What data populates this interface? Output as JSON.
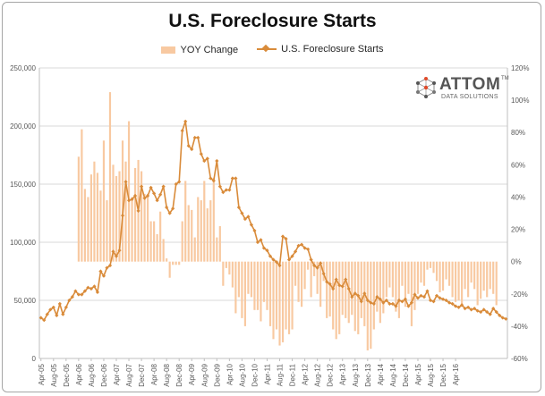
{
  "chart_data": {
    "type": "bar+line",
    "title": "U.S. Foreclosure Starts",
    "legend_position": "top",
    "legend": [
      "YOY Change",
      "U.S. Foreclosure Starts"
    ],
    "x_tick_labels": [
      "Apr-05",
      "Aug-05",
      "Dec-05",
      "Apr-06",
      "Aug-06",
      "Dec-06",
      "Apr-07",
      "Aug-07",
      "Dec-07",
      "Apr-08",
      "Aug-08",
      "Dec-08",
      "Apr-09",
      "Aug-09",
      "Dec-09",
      "Apr-10",
      "Aug-10",
      "Dec-10",
      "Apr-11",
      "Aug-11",
      "Dec-11",
      "Apr-12",
      "Aug-12",
      "Dec-12",
      "Apr-13",
      "Aug-13",
      "Dec-13",
      "Apr-14",
      "Aug-14",
      "Dec-14",
      "Apr-15",
      "Aug-15",
      "Dec-15",
      "Apr-16"
    ],
    "y_left": {
      "ylim": [
        0,
        250000
      ],
      "ticks": [
        "0",
        "50,000",
        "100,000",
        "150,000",
        "200,000",
        "250,000"
      ]
    },
    "y_right": {
      "ylim": [
        -60,
        120
      ],
      "ticks": [
        "-60%",
        "-40%",
        "-20%",
        "0%",
        "20%",
        "40%",
        "60%",
        "80%",
        "100%",
        "120%"
      ]
    },
    "grid": true,
    "start_month": "Apr-05",
    "series": [
      {
        "name": "U.S. Foreclosure Starts",
        "axis": "left",
        "color": "#d98b3a",
        "values": [
          35000,
          33000,
          38000,
          42000,
          44000,
          37000,
          47000,
          38000,
          44000,
          50000,
          53000,
          58000,
          55000,
          55000,
          58000,
          61000,
          60000,
          62000,
          57000,
          75000,
          71000,
          78000,
          80000,
          92000,
          88000,
          93000,
          123000,
          152000,
          136000,
          137000,
          140000,
          127000,
          148000,
          138000,
          140000,
          147000,
          142000,
          136000,
          141000,
          148000,
          130000,
          125000,
          129000,
          150000,
          152000,
          196000,
          204000,
          183000,
          180000,
          190000,
          190000,
          176000,
          170000,
          172000,
          155000,
          153000,
          170000,
          148000,
          143000,
          145000,
          145000,
          155000,
          155000,
          130000,
          125000,
          120000,
          122000,
          115000,
          110000,
          100000,
          102000,
          95000,
          93000,
          88000,
          85000,
          83000,
          80000,
          105000,
          103000,
          85000,
          88000,
          92000,
          97000,
          98000,
          95000,
          94000,
          85000,
          80000,
          78000,
          82000,
          73000,
          66000,
          64000,
          60000,
          68000,
          63000,
          62000,
          68000,
          60000,
          53000,
          56000,
          54000,
          49000,
          56000,
          50000,
          48000,
          47000,
          53000,
          51000,
          48000,
          50000,
          47000,
          47000,
          45000,
          50000,
          49000,
          51000,
          45000,
          48000,
          55000,
          52000,
          54000,
          53000,
          58000,
          50000,
          49000,
          54000,
          52000,
          51000,
          50000,
          48000,
          47000,
          45000,
          44000,
          46000,
          43000,
          44000,
          42000,
          43000,
          41000,
          40000,
          42000,
          40000,
          38000,
          43000,
          40000,
          37000,
          35000,
          34000
        ],
        "x_range": [
          "Apr-05",
          "Jun-16"
        ]
      },
      {
        "name": "YOY Change",
        "axis": "right",
        "color": "#f8c9a1",
        "values": [
          0,
          0,
          0,
          0,
          0,
          0,
          0,
          0,
          0,
          0,
          0,
          0,
          65,
          82,
          45,
          40,
          54,
          62,
          55,
          44,
          75,
          38,
          105,
          60,
          53,
          56,
          75,
          62,
          87,
          40,
          58,
          63,
          56,
          42,
          42,
          25,
          25,
          17,
          31,
          14,
          2,
          -10,
          -2,
          -2,
          -2,
          25,
          50,
          35,
          32,
          15,
          40,
          38,
          50,
          33,
          38,
          52,
          15,
          22,
          -15,
          -4,
          -8,
          -16,
          -32,
          -22,
          -35,
          -40,
          -20,
          -22,
          -30,
          -30,
          -37,
          -25,
          -30,
          -40,
          -48,
          -42,
          -52,
          -50,
          -42,
          -45,
          -42,
          -15,
          -25,
          -28,
          -17,
          -5,
          -22,
          -9,
          -20,
          -28,
          -12,
          -35,
          -34,
          -42,
          -48,
          -45,
          -33,
          -35,
          -38,
          -33,
          -43,
          -45,
          -35,
          -40,
          -55,
          -54,
          -42,
          -31,
          -38,
          -32,
          -22,
          -16,
          -22,
          -31,
          -35,
          -15,
          -28,
          -20,
          -40,
          -30,
          -20,
          -13,
          -15,
          -5,
          -4,
          -7,
          -12,
          -19,
          -18,
          -11,
          -15,
          -22,
          -25,
          -24,
          -28,
          -17,
          -22,
          -13,
          -17,
          -27,
          -23,
          -18,
          -22,
          -17,
          -20,
          -27
        ],
        "x_range": [
          "Apr-05",
          "Jun-16"
        ]
      }
    ]
  },
  "logo": {
    "name": "ATTOM",
    "tm": "TM",
    "subtitle": "DATA SOLUTIONS"
  }
}
